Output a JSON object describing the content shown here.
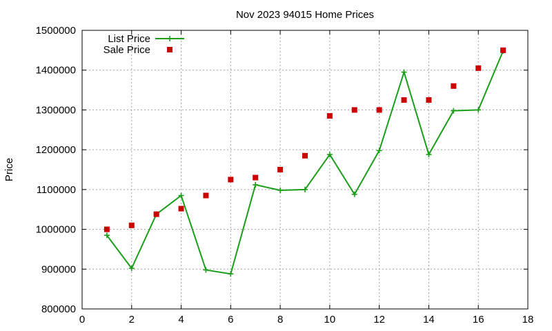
{
  "chart_data": {
    "type": "line",
    "title": "Nov 2023 94015 Home Prices",
    "xlabel": "",
    "ylabel": "Price",
    "xlim": [
      0,
      18
    ],
    "ylim": [
      800000,
      1500000
    ],
    "x_ticks": [
      0,
      2,
      4,
      6,
      8,
      10,
      12,
      14,
      16,
      18
    ],
    "y_ticks": [
      800000,
      900000,
      1000000,
      1100000,
      1200000,
      1300000,
      1400000,
      1500000
    ],
    "grid": true,
    "legend_position": "top-left",
    "series": [
      {
        "name": "List Price",
        "style": "linespoints",
        "marker": "plus",
        "color": "#1a9e1a",
        "x": [
          1,
          2,
          3,
          4,
          5,
          6,
          7,
          8,
          9,
          10,
          11,
          12,
          13,
          14,
          15,
          16,
          17
        ],
        "values": [
          985000,
          902000,
          1038000,
          1085000,
          898000,
          888000,
          1112000,
          1098000,
          1100000,
          1188000,
          1088000,
          1198000,
          1395000,
          1188000,
          1298000,
          1300000,
          1448000
        ]
      },
      {
        "name": "Sale Price",
        "style": "points",
        "marker": "square",
        "color": "#cc0000",
        "x": [
          1,
          2,
          3,
          4,
          5,
          6,
          7,
          8,
          9,
          10,
          11,
          12,
          13,
          14,
          15,
          16,
          17
        ],
        "values": [
          1000000,
          1010000,
          1038000,
          1052000,
          1085000,
          1125000,
          1130000,
          1150000,
          1185000,
          1285000,
          1300000,
          1300000,
          1325000,
          1325000,
          1360000,
          1405000,
          1450000
        ]
      }
    ]
  }
}
